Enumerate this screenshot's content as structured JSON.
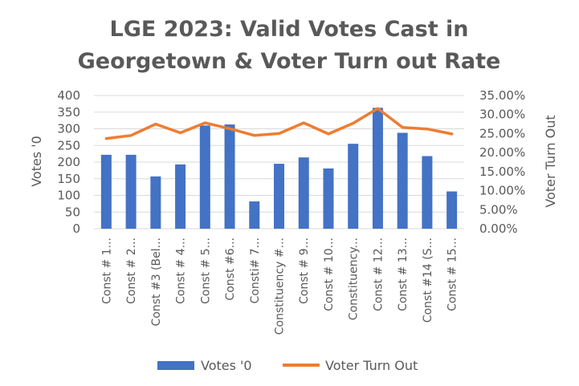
{
  "chart_data": {
    "type": "bar",
    "title_lines": [
      "LGE 2023: Valid Votes Cast in",
      "Georgetown & Voter Turn out Rate"
    ],
    "categories": [
      "Const # 1...",
      "Const # 2...",
      "Const #3 (Bel...",
      "Const # 4...",
      "Const # 5...",
      "Const #6...",
      "Consti# 7...",
      "Constituency #...",
      "Const # 9...",
      "Const # 10...",
      "Constituency...",
      "Const # 12...",
      "Const # 13...",
      "Const #14 (S...",
      "Const # 15..."
    ],
    "series": [
      {
        "name": "Votes '0",
        "type": "bar",
        "axis": "left",
        "color": "#4472C4",
        "values": [
          222,
          222,
          157,
          193,
          310,
          313,
          82,
          195,
          214,
          181,
          255,
          363,
          288,
          218,
          112
        ]
      },
      {
        "name": "Voter Turn Out",
        "type": "line",
        "axis": "right",
        "color": "#ED7D31",
        "values": [
          0.237,
          0.245,
          0.275,
          0.252,
          0.278,
          0.263,
          0.245,
          0.25,
          0.278,
          0.249,
          0.277,
          0.316,
          0.266,
          0.262,
          0.249
        ]
      }
    ],
    "ylabel": "Votes '0",
    "ylabel_right": "Voter Turn Out",
    "ylim": [
      0,
      400
    ],
    "ylim_right": [
      0,
      0.35
    ],
    "yticks": [
      "0",
      "50",
      "100",
      "150",
      "200",
      "250",
      "300",
      "350",
      "400"
    ],
    "yticks_right": [
      "0.00%",
      "5.00%",
      "10.00%",
      "15.00%",
      "20.00%",
      "25.00%",
      "30.00%",
      "35.00%"
    ],
    "grid": true,
    "legend_position": "bottom"
  }
}
